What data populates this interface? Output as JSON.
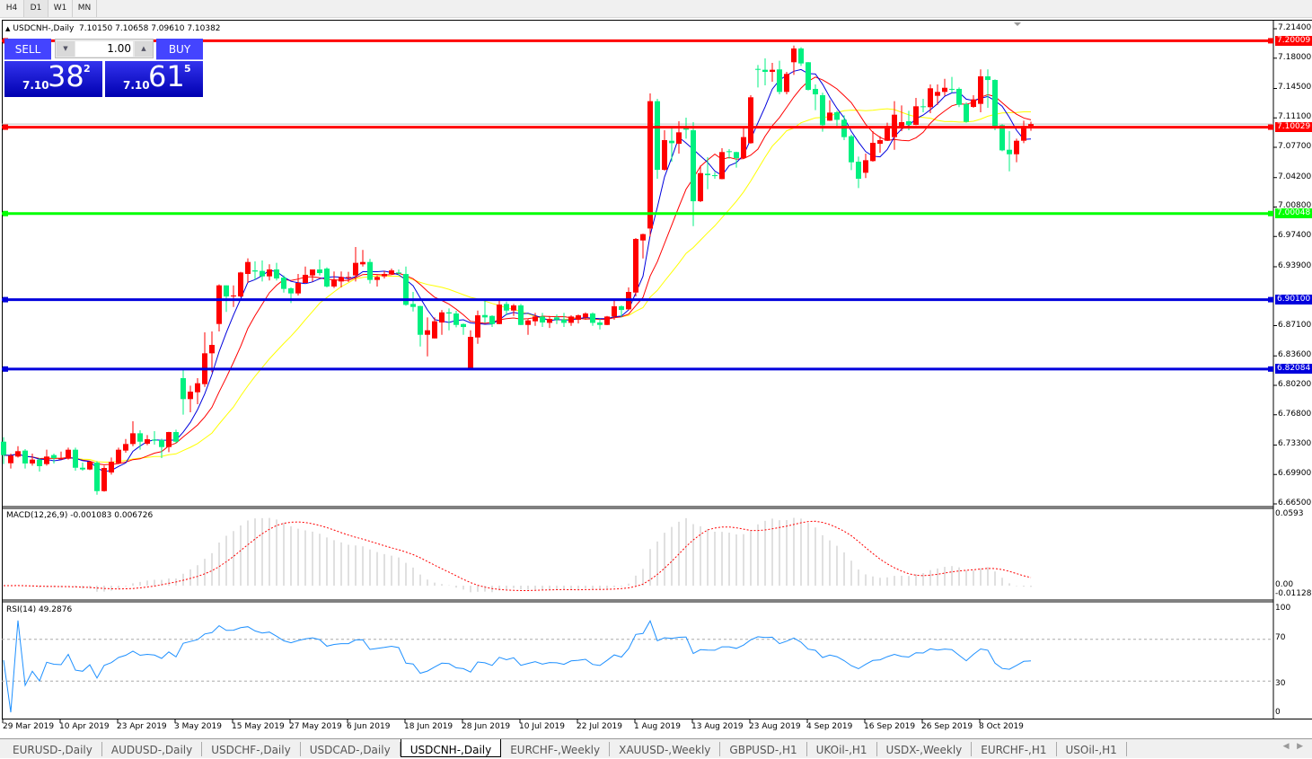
{
  "timeframes": [
    {
      "label": "H4"
    },
    {
      "label": "D1",
      "active": true
    },
    {
      "label": "W1"
    },
    {
      "label": "MN"
    }
  ],
  "header": {
    "symbol": "USDCNH-,Daily",
    "open": "7.10150",
    "high": "7.10658",
    "low": "7.09610",
    "close": "7.10382"
  },
  "trade_panel": {
    "sell_label": "SELL",
    "buy_label": "BUY",
    "lot": "1.00",
    "sell_prefix": "7.10",
    "sell_big": "38",
    "sell_sup": "2",
    "buy_prefix": "7.10",
    "buy_big": "61",
    "buy_sup": "5"
  },
  "colors": {
    "bull": "#ff0000",
    "bear": "#00f080",
    "ma_fast": "#0000dd",
    "ma_mid": "#ff0000",
    "ma_slow": "#ffff00",
    "macd_hist": "#c0c0c0",
    "macd_signal": "#ff0000",
    "rsi": "#1e90ff"
  },
  "price_axis": [
    "7.21400",
    "7.18000",
    "7.14500",
    "7.11100",
    "7.07700",
    "7.04200",
    "7.00800",
    "6.97400",
    "6.93900",
    "6.87100",
    "6.83600",
    "6.80200",
    "6.76800",
    "6.73300",
    "6.69900",
    "6.66500"
  ],
  "hlines": [
    {
      "price": 7.20009,
      "label": "7.20009",
      "color": "#ff0000"
    },
    {
      "price": 7.10029,
      "label": "7.10029",
      "color": "#ff0000"
    },
    {
      "price": 7.00048,
      "label": "7.00048",
      "color": "#00ff00"
    },
    {
      "price": 6.901,
      "label": "6.90100",
      "color": "#0000dd"
    },
    {
      "price": 6.82084,
      "label": "6.82084",
      "color": "#0000dd"
    }
  ],
  "macd": {
    "label": "MACD(12,26,9) -0.001083 0.006726",
    "axis_top": "0.0593",
    "axis_zero": "0.00",
    "axis_bottom": "-0.011289"
  },
  "rsi": {
    "label": "RSI(14) 49.2876",
    "levels": [
      "100",
      "70",
      "30",
      "0"
    ]
  },
  "dates": [
    "29 Mar 2019",
    "10 Apr 2019",
    "23 Apr 2019",
    "3 May 2019",
    "15 May 2019",
    "27 May 2019",
    "6 Jun 2019",
    "18 Jun 2019",
    "28 Jun 2019",
    "10 Jul 2019",
    "22 Jul 2019",
    "1 Aug 2019",
    "13 Aug 2019",
    "23 Aug 2019",
    "4 Sep 2019",
    "16 Sep 2019",
    "26 Sep 2019",
    "8 Oct 2019"
  ],
  "tabs": [
    {
      "label": "EURUSD-,Daily"
    },
    {
      "label": "AUDUSD-,Daily"
    },
    {
      "label": "USDCHF-,Daily"
    },
    {
      "label": "USDCAD-,Daily"
    },
    {
      "label": "USDCNH-,Daily",
      "active": true
    },
    {
      "label": "EURCHF-,Weekly"
    },
    {
      "label": "XAUUSD-,Weekly"
    },
    {
      "label": "GBPUSD-,H1"
    },
    {
      "label": "UKOil-,H1"
    },
    {
      "label": "USDX-,Weekly"
    },
    {
      "label": "EURCHF-,H1"
    },
    {
      "label": "USOil-,H1"
    }
  ],
  "chart_data": {
    "type": "candlestick",
    "ylim": [
      6.665,
      7.214
    ],
    "ohlc": [
      [
        6.7369,
        6.7421,
        6.711,
        6.7214
      ],
      [
        6.712,
        6.7231,
        6.7058,
        6.7207
      ],
      [
        6.7197,
        6.7317,
        6.7186,
        6.7259
      ],
      [
        6.7266,
        6.7283,
        6.7058,
        6.7117
      ],
      [
        6.7117,
        6.7231,
        6.7093,
        6.7162
      ],
      [
        6.7162,
        6.7179,
        6.7023,
        6.7086
      ],
      [
        6.711,
        6.7276,
        6.7093,
        6.7197
      ],
      [
        6.7214,
        6.7231,
        6.7117,
        6.7179
      ],
      [
        6.7172,
        6.7255,
        6.7162,
        6.7175
      ],
      [
        6.7172,
        6.73,
        6.7162,
        6.7276
      ],
      [
        6.7276,
        6.73,
        6.7034,
        6.7068
      ],
      [
        6.7068,
        6.7127,
        6.7034,
        6.7048
      ],
      [
        6.7048,
        6.7144,
        6.7041,
        6.7137
      ],
      [
        6.7127,
        6.7144,
        6.6757,
        6.6798
      ],
      [
        6.6798,
        6.7093,
        6.6791,
        6.7065
      ],
      [
        6.7013,
        6.7186,
        6.6989,
        6.7137
      ],
      [
        6.712,
        6.73,
        6.711,
        6.7276
      ],
      [
        6.7266,
        6.74,
        6.7241,
        6.7342
      ],
      [
        6.7342,
        6.7605,
        6.7317,
        6.7466
      ],
      [
        6.7466,
        6.7501,
        6.7276,
        6.7369
      ],
      [
        6.7345,
        6.7445,
        6.7328,
        6.7397
      ],
      [
        6.7393,
        6.749,
        6.7335,
        6.738
      ],
      [
        6.7387,
        6.7404,
        6.7179,
        6.7307
      ],
      [
        6.7307,
        6.7483,
        6.7248,
        6.748
      ],
      [
        6.748,
        6.7508,
        6.7352,
        6.7369
      ],
      [
        6.8103,
        6.82,
        6.7681,
        6.7861
      ],
      [
        6.7861,
        6.8016,
        6.7708,
        6.7947
      ],
      [
        6.794,
        6.8103,
        6.7802,
        6.8044
      ],
      [
        6.8034,
        6.8632,
        6.8002,
        6.839
      ],
      [
        6.839,
        6.8643,
        6.8172,
        6.8487
      ],
      [
        6.8729,
        6.9186,
        6.8643,
        6.9175
      ],
      [
        6.9175,
        6.9175,
        6.8868,
        6.9047
      ],
      [
        6.9047,
        6.9175,
        6.8926,
        6.9058
      ],
      [
        6.9047,
        6.9331,
        6.9037,
        6.9324
      ],
      [
        6.9307,
        6.9487,
        6.9203,
        6.9445
      ],
      [
        6.9348,
        6.9452,
        6.9238,
        6.9335
      ],
      [
        6.9342,
        6.9463,
        6.922,
        6.9279
      ],
      [
        6.9279,
        6.9418,
        6.9231,
        6.9359
      ],
      [
        6.9359,
        6.9435,
        6.9231,
        6.9255
      ],
      [
        6.9265,
        6.929,
        6.9092,
        6.9134
      ],
      [
        6.9141,
        6.9151,
        6.8971,
        6.9082
      ],
      [
        6.9082,
        6.9307,
        6.9058,
        6.9203
      ],
      [
        6.9203,
        6.9393,
        6.9203,
        6.9297
      ],
      [
        6.929,
        6.9359,
        6.922,
        6.9359
      ],
      [
        6.9359,
        6.9473,
        6.929,
        6.9317
      ],
      [
        6.9369,
        6.9383,
        6.9151,
        6.9162
      ],
      [
        6.9162,
        6.9335,
        6.9144,
        6.9238
      ],
      [
        6.922,
        6.9335,
        6.9151,
        6.9272
      ],
      [
        6.9262,
        6.9331,
        6.9213,
        6.9272
      ],
      [
        6.929,
        6.9618,
        6.922,
        6.9435
      ],
      [
        6.9418,
        6.9584,
        6.9393,
        6.9445
      ],
      [
        6.9445,
        6.948,
        6.9196,
        6.9238
      ],
      [
        6.9238,
        6.929,
        6.9162,
        6.9272
      ],
      [
        6.9279,
        6.9342,
        6.9255,
        6.9307
      ],
      [
        6.9307,
        6.9369,
        6.93,
        6.9348
      ],
      [
        6.9324,
        6.9359,
        6.929,
        6.9321
      ],
      [
        6.9306,
        6.9393,
        6.894,
        6.895
      ],
      [
        6.896,
        6.9099,
        6.8874,
        6.8926
      ],
      [
        6.8936,
        6.894,
        6.8469,
        6.8604
      ],
      [
        6.8604,
        6.8805,
        6.8355,
        6.8656
      ],
      [
        6.8562,
        6.8805,
        6.8562,
        6.876
      ],
      [
        6.8746,
        6.8891,
        6.8604,
        6.8863
      ],
      [
        6.8863,
        6.8908,
        6.8656,
        6.885
      ],
      [
        6.885,
        6.8881,
        6.869,
        6.8718
      ],
      [
        6.8728,
        6.8735,
        6.8604,
        6.8694
      ],
      [
        6.8216,
        6.8656,
        6.821,
        6.858
      ],
      [
        6.8573,
        6.8884,
        6.85,
        6.8829
      ],
      [
        6.8832,
        6.8995,
        6.8742,
        6.8805
      ],
      [
        6.8822,
        6.8829,
        6.8694,
        6.8728
      ],
      [
        6.8728,
        6.8995,
        6.8725,
        6.8953
      ],
      [
        6.896,
        6.8988,
        6.8829,
        6.8884
      ],
      [
        6.8884,
        6.896,
        6.8822,
        6.8943
      ],
      [
        6.8943,
        6.896,
        6.8715,
        6.8718
      ],
      [
        6.8718,
        6.8787,
        6.8604,
        6.877
      ],
      [
        6.876,
        6.8857,
        6.8708,
        6.8815
      ],
      [
        6.8815,
        6.8857,
        6.8694,
        6.8746
      ],
      [
        6.8742,
        6.8822,
        6.8683,
        6.8787
      ],
      [
        6.8805,
        6.8839,
        6.8728,
        6.878
      ],
      [
        6.8777,
        6.8857,
        6.8694,
        6.8742
      ],
      [
        6.8742,
        6.8829,
        6.8708,
        6.8815
      ],
      [
        6.8777,
        6.8839,
        6.8735,
        6.8829
      ],
      [
        6.8805,
        6.8863,
        6.8777,
        6.885
      ],
      [
        6.885,
        6.8863,
        6.8708,
        6.8742
      ],
      [
        6.8746,
        6.8787,
        6.8666,
        6.8718
      ],
      [
        6.8718,
        6.8822,
        6.8715,
        6.8815
      ],
      [
        6.8815,
        6.8995,
        6.8777,
        6.8933
      ],
      [
        6.8933,
        6.8943,
        6.8805,
        6.8891
      ],
      [
        6.8898,
        6.9151,
        6.8891,
        6.9099
      ],
      [
        6.9092,
        6.9722,
        6.9047,
        6.9711
      ],
      [
        6.9694,
        6.9773,
        6.9486,
        6.9767
      ],
      [
        6.9832,
        7.1393,
        6.9739,
        7.1303
      ],
      [
        7.1303,
        7.133,
        7.0407,
        7.051
      ],
      [
        7.051,
        7.0967,
        7.05,
        7.0853
      ],
      [
        7.0846,
        7.1002,
        7.0604,
        7.0818
      ],
      [
        7.0811,
        7.1071,
        7.0697,
        7.0943
      ],
      [
        7.0991,
        7.1112,
        7.087,
        7.0974
      ],
      [
        7.0967,
        7.1061,
        6.986,
        7.0147
      ],
      [
        7.0147,
        7.0559,
        7.0137,
        7.0472
      ],
      [
        7.0465,
        7.0656,
        7.0286,
        7.0448
      ],
      [
        7.0448,
        7.0483,
        7.0407,
        7.0442
      ],
      [
        7.0403,
        7.076,
        7.04,
        7.0715
      ],
      [
        7.0725,
        7.0749,
        7.0638,
        7.0715
      ],
      [
        7.0715,
        7.072,
        7.0535,
        7.0645
      ],
      [
        7.0645,
        7.0991,
        7.064,
        7.0888
      ],
      [
        7.0818,
        7.1372,
        7.0811,
        7.1348
      ],
      [
        7.1676,
        7.1721,
        7.1462,
        7.167
      ],
      [
        7.1666,
        7.1798,
        7.1486,
        7.1642
      ],
      [
        7.1642,
        7.1746,
        7.1528,
        7.1666
      ],
      [
        7.167,
        7.177,
        7.1382,
        7.141
      ],
      [
        7.141,
        7.1642,
        7.1382,
        7.1618
      ],
      [
        7.1753,
        7.1946,
        7.1607,
        7.1912
      ],
      [
        7.1912,
        7.1926,
        7.1711,
        7.1739
      ],
      [
        7.1753,
        7.1755,
        7.1427,
        7.1434
      ],
      [
        7.1445,
        7.1496,
        7.1199,
        7.1382
      ],
      [
        7.1372,
        7.14,
        7.095,
        7.1026
      ],
      [
        7.1078,
        7.1313,
        7.1075,
        7.1171
      ],
      [
        7.1175,
        7.1192,
        7.1019,
        7.1088
      ],
      [
        7.1088,
        7.114,
        7.0853,
        7.0888
      ],
      [
        7.0898,
        7.0915,
        7.0507,
        7.0597
      ],
      [
        7.0604,
        7.0663,
        7.0299,
        7.0407
      ],
      [
        7.0476,
        7.0697,
        7.0414,
        7.0621
      ],
      [
        7.0611,
        7.0957,
        7.0604,
        7.0822
      ],
      [
        7.0811,
        7.0898,
        7.0708,
        7.0853
      ],
      [
        7.0846,
        7.1054,
        7.0843,
        7.1019
      ],
      [
        7.0888,
        7.1303,
        7.0742,
        7.1147
      ],
      [
        7.1002,
        7.1254,
        7.0957,
        7.1061
      ],
      [
        7.1071,
        7.1192,
        7.0967,
        7.1029
      ],
      [
        7.1029,
        7.1341,
        7.1026,
        7.1244
      ],
      [
        7.1244,
        7.133,
        7.1175,
        7.1234
      ],
      [
        7.1234,
        7.1496,
        7.1164,
        7.1452
      ],
      [
        7.1365,
        7.1496,
        7.1261,
        7.141
      ],
      [
        7.141,
        7.1562,
        7.1365,
        7.1458
      ],
      [
        7.1445,
        7.1583,
        7.14,
        7.1441
      ],
      [
        7.1445,
        7.1462,
        7.1234,
        7.1261
      ],
      [
        7.1268,
        7.1289,
        7.1054,
        7.1064
      ],
      [
        7.1237,
        7.1372,
        7.1227,
        7.1324
      ],
      [
        7.1272,
        7.167,
        7.1175,
        7.159
      ],
      [
        7.159,
        7.167,
        7.1227,
        7.1548
      ],
      [
        7.1548,
        7.1555,
        7.0967,
        7.1019
      ],
      [
        7.1026,
        7.1036,
        7.0725,
        7.0735
      ],
      [
        7.0742,
        7.0957,
        7.0493,
        7.069
      ],
      [
        7.069,
        7.087,
        7.0597,
        7.0846
      ],
      [
        7.0846,
        7.1078,
        7.0818,
        7.1019
      ],
      [
        7.1015,
        7.10658,
        7.0961,
        7.10382
      ]
    ]
  }
}
